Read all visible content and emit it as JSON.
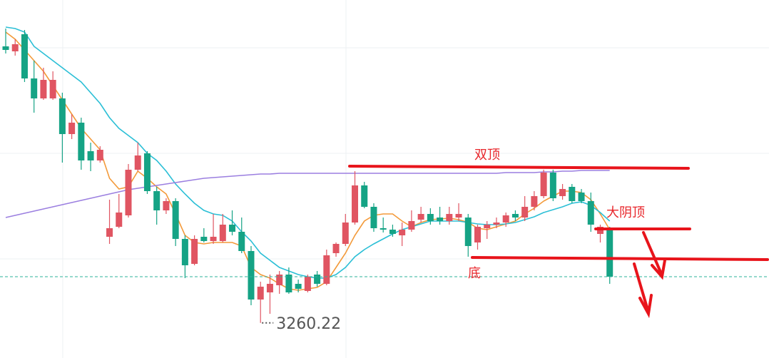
{
  "chart_data": {
    "type": "candlestick",
    "up_color": "#e05562",
    "down_color": "#15a385",
    "ylim": [
      3211,
      3713
    ],
    "open": [
      3648,
      3641,
      3665,
      3603,
      3575,
      3575,
      3575,
      3525,
      3541,
      3501,
      3488,
      3381,
      3395,
      3411,
      3475,
      3498,
      3445,
      3418,
      3431,
      3378,
      3343,
      3381,
      3375,
      3375,
      3398,
      3388,
      3361,
      3293,
      3303,
      3313,
      3328,
      3315,
      3305,
      3328,
      3315,
      3358,
      3371,
      3401,
      3453,
      3423,
      3393,
      3391,
      3383,
      3391,
      3405,
      3413,
      3408,
      3403,
      3408,
      3408,
      3373,
      3393,
      3398,
      3401,
      3413,
      3408,
      3423,
      3438,
      3471,
      3438,
      3451,
      3443,
      3431,
      3385,
      3393
    ],
    "high": [
      3673,
      3658,
      3671,
      3628,
      3618,
      3613,
      3583,
      3553,
      3548,
      3513,
      3508,
      3433,
      3441,
      3483,
      3513,
      3501,
      3451,
      3435,
      3435,
      3383,
      3383,
      3393,
      3413,
      3413,
      3418,
      3408,
      3368,
      3318,
      3328,
      3333,
      3338,
      3321,
      3328,
      3333,
      3363,
      3373,
      3413,
      3473,
      3458,
      3428,
      3408,
      3398,
      3401,
      3418,
      3423,
      3421,
      3423,
      3423,
      3428,
      3413,
      3398,
      3403,
      3408,
      3415,
      3418,
      3438,
      3445,
      3475,
      3475,
      3455,
      3455,
      3448,
      3443,
      3398,
      3395
    ],
    "low": [
      3638,
      3635,
      3598,
      3555,
      3573,
      3573,
      3485,
      3518,
      3475,
      3473,
      3485,
      3371,
      3393,
      3408,
      3473,
      3441,
      3398,
      3413,
      3368,
      3323,
      3341,
      3373,
      3371,
      3373,
      3383,
      3358,
      3285,
      3260.22,
      3273,
      3301,
      3301,
      3303,
      3303,
      3311,
      3313,
      3353,
      3368,
      3398,
      3421,
      3388,
      3387,
      3381,
      3368,
      3388,
      3401,
      3398,
      3398,
      3398,
      3403,
      3353,
      3363,
      3378,
      3393,
      3395,
      3403,
      3403,
      3418,
      3435,
      3431,
      3433,
      3428,
      3428,
      3388,
      3373,
      3315
    ],
    "close": [
      3643,
      3651,
      3603,
      3575,
      3601,
      3601,
      3525,
      3541,
      3488,
      3488,
      3503,
      3393,
      3415,
      3475,
      3495,
      3445,
      3418,
      3431,
      3378,
      3341,
      3378,
      3375,
      3381,
      3398,
      3388,
      3361,
      3293,
      3311,
      3315,
      3328,
      3303,
      3308,
      3325,
      3315,
      3355,
      3371,
      3401,
      3453,
      3423,
      3393,
      3391,
      3385,
      3391,
      3403,
      3413,
      3403,
      3403,
      3413,
      3413,
      3368,
      3395,
      3398,
      3401,
      3411,
      3408,
      3423,
      3438,
      3471,
      3435,
      3448,
      3431,
      3431,
      3398,
      3395,
      3325
    ],
    "lines": [
      {
        "color": "#f39a3a",
        "values": [
          3668,
          3658,
          3643,
          3628,
          3613,
          3593,
          3573,
          3553,
          3533,
          3518,
          3503,
          3463,
          3448,
          3451,
          3473,
          3463,
          3451,
          3441,
          3413,
          3383,
          3373,
          3371,
          3373,
          3373,
          3373,
          3368,
          3338,
          3328,
          3323,
          3315,
          3308,
          3306,
          3308,
          3310,
          3318,
          3338,
          3358,
          3383,
          3403,
          3411,
          3413,
          3413,
          3403,
          3395,
          3401,
          3405,
          3406,
          3407,
          3405,
          3401,
          3393,
          3391,
          3395,
          3399,
          3403,
          3413,
          3421,
          3431,
          3438,
          3445,
          3445,
          3443,
          3433,
          3413,
          3391
        ]
      },
      {
        "color": "#2bbfd6",
        "values": [
          3675,
          3673,
          3668,
          3648,
          3638,
          3628,
          3618,
          3608,
          3598,
          3583,
          3568,
          3548,
          3533,
          3523,
          3513,
          3498,
          3488,
          3473,
          3455,
          3441,
          3428,
          3418,
          3413,
          3411,
          3403,
          3388,
          3375,
          3358,
          3348,
          3338,
          3333,
          3328,
          3325,
          3323,
          3323,
          3328,
          3338,
          3353,
          3363,
          3371,
          3378,
          3385,
          3391,
          3395,
          3399,
          3403,
          3403,
          3403,
          3403,
          3401,
          3399,
          3398,
          3398,
          3399,
          3401,
          3405,
          3409,
          3415,
          3419,
          3423,
          3428,
          3430,
          3425,
          3415,
          3403
        ]
      },
      {
        "color": "#9b7fe0",
        "values": [
          3408,
          3411,
          3414,
          3417,
          3420,
          3423,
          3426,
          3429,
          3432,
          3435,
          3438,
          3441,
          3444,
          3447,
          3449,
          3451,
          3453,
          3455,
          3457,
          3459,
          3461,
          3463,
          3464,
          3465,
          3466,
          3467,
          3468,
          3469,
          3469,
          3470,
          3470,
          3470,
          3470,
          3470,
          3470,
          3470,
          3470,
          3470,
          3470,
          3470,
          3470,
          3470,
          3470,
          3470,
          3470,
          3470,
          3470,
          3470,
          3470,
          3470,
          3470,
          3470,
          3470,
          3471,
          3471,
          3471,
          3471,
          3472,
          3472,
          3473,
          3473,
          3474,
          3474,
          3474,
          3474
        ]
      }
    ],
    "annotations": [
      "双顶",
      "大阴顶",
      "底"
    ]
  }
}
